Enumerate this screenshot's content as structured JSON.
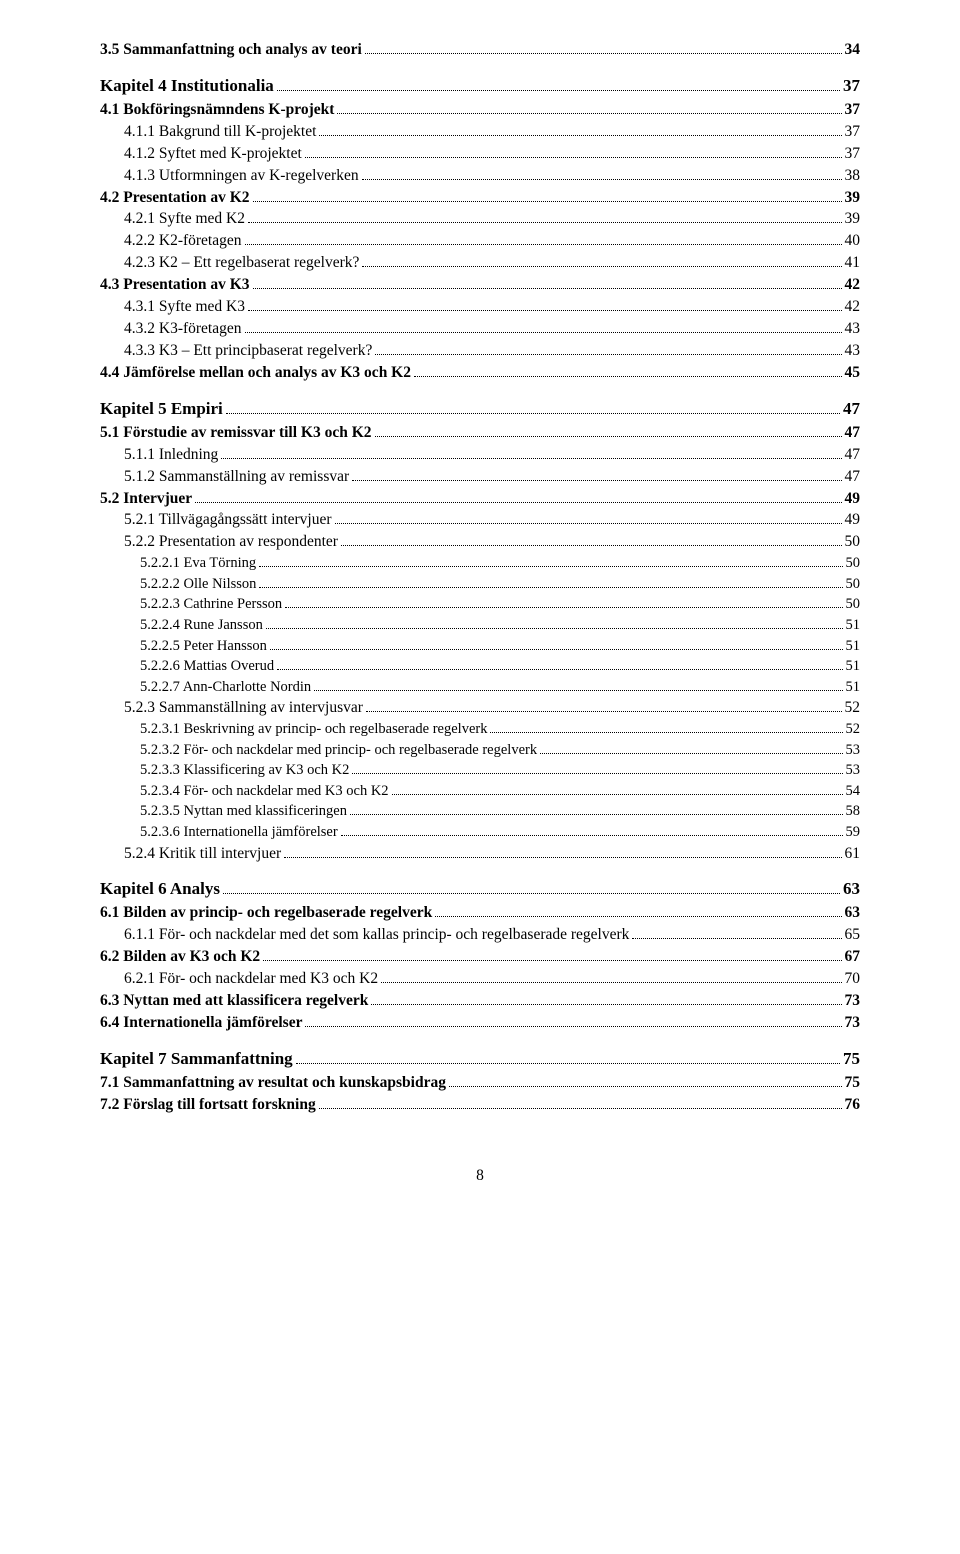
{
  "toc": [
    {
      "label": "3.5 Sammanfattning och analys av teori",
      "page": "34",
      "level": 1,
      "bold": true
    },
    {
      "label": "Kapitel 4 Institutionalia",
      "page": "37",
      "level": 0,
      "bold": true
    },
    {
      "label": "4.1 Bokföringsnämndens K-projekt",
      "page": "37",
      "level": 1,
      "bold": true
    },
    {
      "label": "4.1.1 Bakgrund till K-projektet",
      "page": "37",
      "level": 2,
      "bold": false
    },
    {
      "label": "4.1.2 Syftet med K-projektet",
      "page": "37",
      "level": 2,
      "bold": false
    },
    {
      "label": "4.1.3 Utformningen av K-regelverken",
      "page": "38",
      "level": 2,
      "bold": false
    },
    {
      "label": "4.2 Presentation av K2",
      "page": "39",
      "level": 1,
      "bold": true
    },
    {
      "label": "4.2.1 Syfte med K2",
      "page": "39",
      "level": 2,
      "bold": false
    },
    {
      "label": "4.2.2 K2-företagen",
      "page": "40",
      "level": 2,
      "bold": false
    },
    {
      "label": "4.2.3 K2 – Ett regelbaserat regelverk?",
      "page": "41",
      "level": 2,
      "bold": false
    },
    {
      "label": "4.3 Presentation av K3",
      "page": "42",
      "level": 1,
      "bold": true
    },
    {
      "label": "4.3.1 Syfte med K3",
      "page": "42",
      "level": 2,
      "bold": false
    },
    {
      "label": "4.3.2 K3-företagen",
      "page": "43",
      "level": 2,
      "bold": false
    },
    {
      "label": "4.3.3 K3 – Ett principbaserat regelverk?",
      "page": "43",
      "level": 2,
      "bold": false
    },
    {
      "label": "4.4 Jämförelse mellan och analys av K3 och K2",
      "page": "45",
      "level": 1,
      "bold": true
    },
    {
      "label": "Kapitel 5 Empiri",
      "page": "47",
      "level": 0,
      "bold": true
    },
    {
      "label": "5.1 Förstudie av remissvar till K3 och K2",
      "page": "47",
      "level": 1,
      "bold": true
    },
    {
      "label": "5.1.1 Inledning",
      "page": "47",
      "level": 2,
      "bold": false
    },
    {
      "label": "5.1.2 Sammanställning av remissvar",
      "page": "47",
      "level": 2,
      "bold": false
    },
    {
      "label": "5.2 Intervjuer",
      "page": "49",
      "level": 1,
      "bold": true
    },
    {
      "label": "5.2.1 Tillvägagångssätt intervjuer",
      "page": "49",
      "level": 2,
      "bold": false
    },
    {
      "label": "5.2.2 Presentation av respondenter",
      "page": "50",
      "level": 2,
      "bold": false
    },
    {
      "label": "5.2.2.1 Eva Törning",
      "page": "50",
      "level": 3,
      "bold": false
    },
    {
      "label": "5.2.2.2 Olle Nilsson",
      "page": "50",
      "level": 3,
      "bold": false
    },
    {
      "label": "5.2.2.3 Cathrine Persson",
      "page": "50",
      "level": 3,
      "bold": false
    },
    {
      "label": "5.2.2.4 Rune Jansson",
      "page": "51",
      "level": 3,
      "bold": false
    },
    {
      "label": "5.2.2.5 Peter Hansson",
      "page": "51",
      "level": 3,
      "bold": false
    },
    {
      "label": "5.2.2.6 Mattias Overud",
      "page": "51",
      "level": 3,
      "bold": false
    },
    {
      "label": "5.2.2.7 Ann-Charlotte Nordin",
      "page": "51",
      "level": 3,
      "bold": false
    },
    {
      "label": "5.2.3 Sammanställning av intervjusvar",
      "page": "52",
      "level": 2,
      "bold": false
    },
    {
      "label": "5.2.3.1 Beskrivning av princip- och regelbaserade regelverk",
      "page": "52",
      "level": 3,
      "bold": false
    },
    {
      "label": "5.2.3.2 För- och nackdelar med princip- och regelbaserade regelverk",
      "page": "53",
      "level": 3,
      "bold": false
    },
    {
      "label": "5.2.3.3 Klassificering av K3 och K2",
      "page": "53",
      "level": 3,
      "bold": false
    },
    {
      "label": "5.2.3.4 För- och nackdelar med K3 och K2",
      "page": "54",
      "level": 3,
      "bold": false
    },
    {
      "label": "5.2.3.5 Nyttan med klassificeringen",
      "page": "58",
      "level": 3,
      "bold": false
    },
    {
      "label": "5.2.3.6 Internationella jämförelser",
      "page": "59",
      "level": 3,
      "bold": false
    },
    {
      "label": "5.2.4 Kritik till intervjuer",
      "page": "61",
      "level": 2,
      "bold": false
    },
    {
      "label": "Kapitel 6 Analys",
      "page": "63",
      "level": 0,
      "bold": true
    },
    {
      "label": "6.1 Bilden av princip- och regelbaserade regelverk",
      "page": "63",
      "level": 1,
      "bold": true
    },
    {
      "label": "6.1.1 För- och nackdelar med det som kallas princip- och regelbaserade regelverk",
      "page": "65",
      "level": 2,
      "bold": false
    },
    {
      "label": "6.2 Bilden av K3 och K2",
      "page": "67",
      "level": 1,
      "bold": true
    },
    {
      "label": "6.2.1 För- och nackdelar med K3 och K2",
      "page": "70",
      "level": 2,
      "bold": false
    },
    {
      "label": "6.3 Nyttan med att klassificera regelverk",
      "page": "73",
      "level": 1,
      "bold": true
    },
    {
      "label": "6.4 Internationella jämförelser",
      "page": "73",
      "level": 1,
      "bold": true
    },
    {
      "label": "Kapitel 7 Sammanfattning",
      "page": "75",
      "level": 0,
      "bold": true
    },
    {
      "label": "7.1 Sammanfattning av resultat och kunskapsbidrag",
      "page": "75",
      "level": 1,
      "bold": true
    },
    {
      "label": "7.2 Förslag till fortsatt forskning",
      "page": "76",
      "level": 1,
      "bold": true
    }
  ],
  "page_number": "8"
}
